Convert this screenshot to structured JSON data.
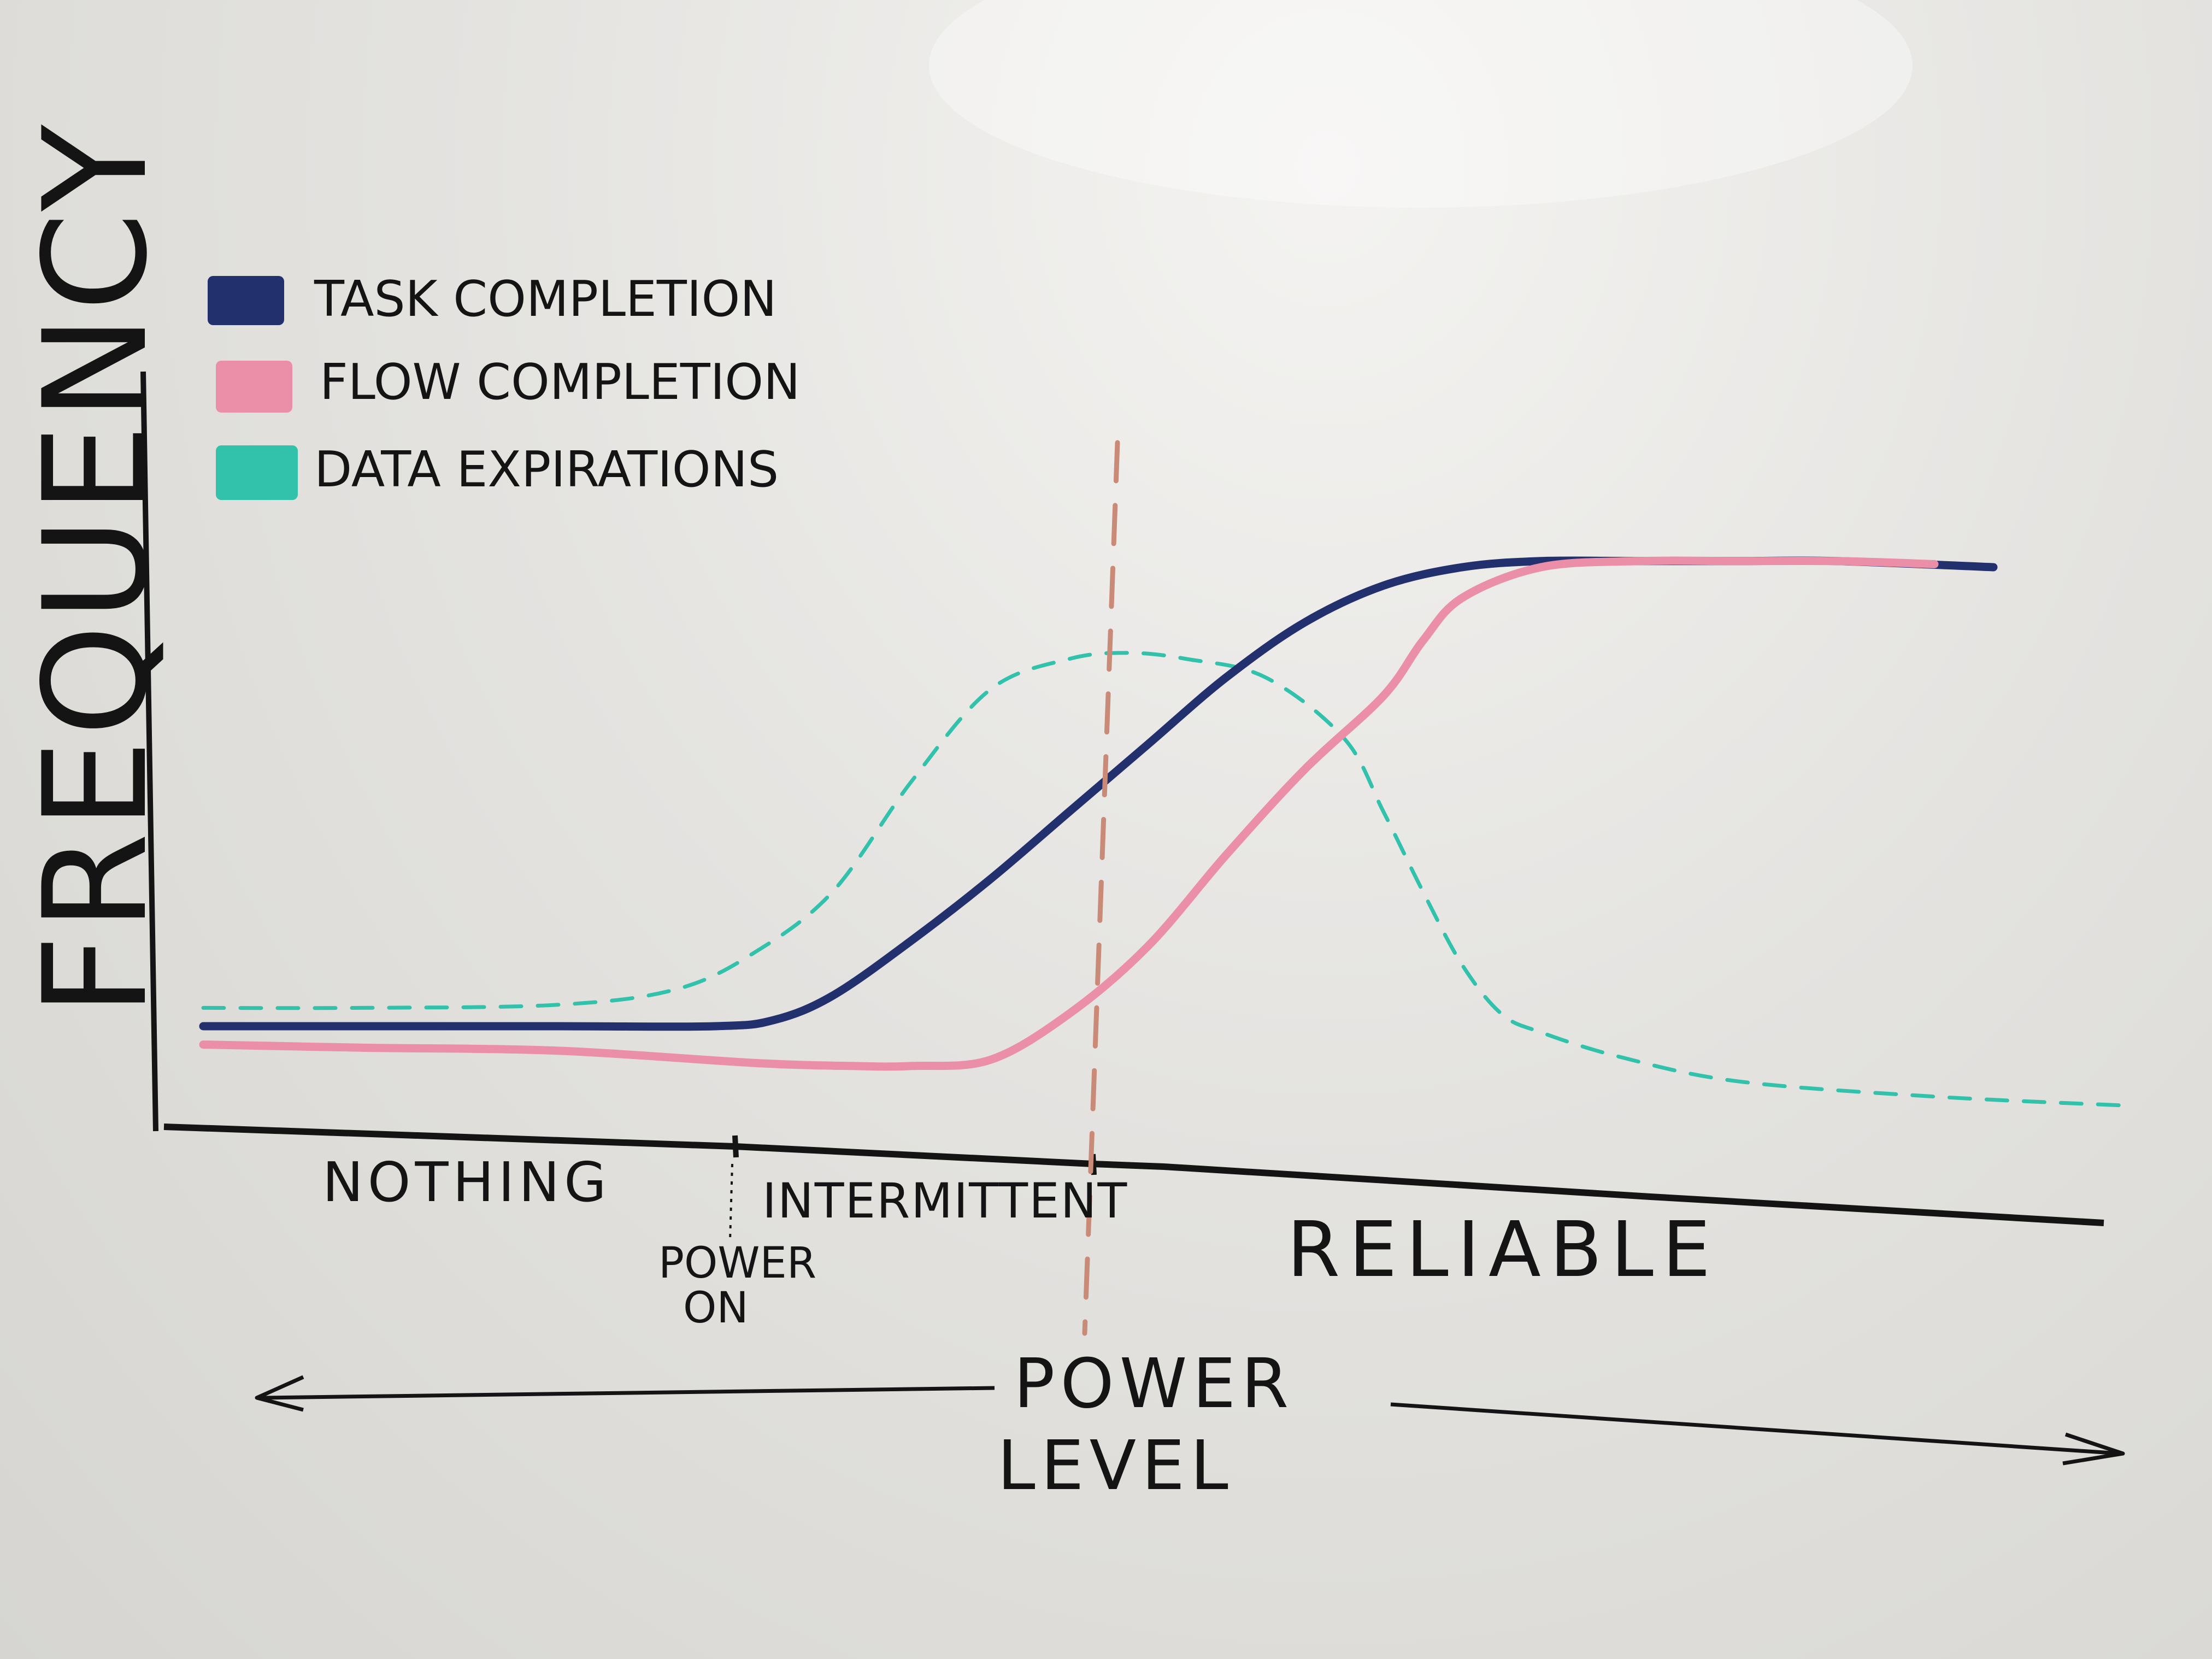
{
  "chart_data": {
    "type": "line",
    "title": "",
    "ylabel": "FREQUENCY",
    "xlabel_line1": "POWER",
    "xlabel_line2": "LEVEL",
    "x_range": [
      0,
      100
    ],
    "y_range": [
      0,
      100
    ],
    "legend": {
      "placement": "top-left",
      "items": [
        {
          "label": "TASK COMPLETION",
          "color": "#23306e"
        },
        {
          "label": "FLOW COMPLETION",
          "color": "#ea8fa7"
        },
        {
          "label": "DATA EXPIRATIONS",
          "color": "#32c2ac"
        }
      ]
    },
    "regions": [
      {
        "label": "NOTHING",
        "from": 0,
        "to": 29
      },
      {
        "label": "INTERMITTENT",
        "from": 29,
        "to": 48
      },
      {
        "label": "RELIABLE",
        "from": 48,
        "to": 100
      }
    ],
    "markers": [
      {
        "label_line1": "POWER",
        "label_line2": "ON",
        "x": 29
      },
      {
        "label_line1": "",
        "label_line2": "",
        "x": 48
      }
    ],
    "series": [
      {
        "name": "TASK COMPLETION",
        "color": "#23306e",
        "style": "solid",
        "x": [
          2,
          10,
          20,
          28,
          31,
          34,
          38,
          42,
          46,
          50,
          54,
          58,
          62,
          66,
          70,
          75,
          80,
          85,
          93
        ],
        "y": [
          10,
          10,
          10,
          10,
          11,
          15,
          24,
          34,
          45,
          56,
          67,
          76,
          82,
          85,
          86,
          86,
          86,
          86,
          85
        ]
      },
      {
        "name": "FLOW COMPLETION",
        "color": "#ea8fa7",
        "style": "solid",
        "x": [
          2,
          10,
          20,
          30,
          35,
          38,
          42,
          46,
          50,
          54,
          58,
          62,
          64,
          66,
          70,
          75,
          80,
          85,
          90
        ],
        "y": [
          7,
          6.5,
          6,
          4,
          3.5,
          3.5,
          4.5,
          12,
          23,
          38,
          52,
          64,
          73,
          80,
          85,
          86,
          86,
          86,
          85.5
        ]
      },
      {
        "name": "DATA EXPIRATIONS",
        "color": "#32c2ac",
        "style": "dashed",
        "x": [
          2,
          10,
          20,
          26,
          30,
          34,
          38,
          42,
          46,
          49,
          52,
          56,
          60,
          62,
          64,
          66,
          68,
          70,
          74,
          80,
          90,
          100
        ],
        "y": [
          13,
          13,
          13.5,
          16,
          22,
          32,
          50,
          65,
          70,
          71,
          70,
          67,
          57,
          45,
          32,
          20,
          12,
          9,
          5,
          1,
          -1.5,
          -3
        ]
      }
    ]
  }
}
